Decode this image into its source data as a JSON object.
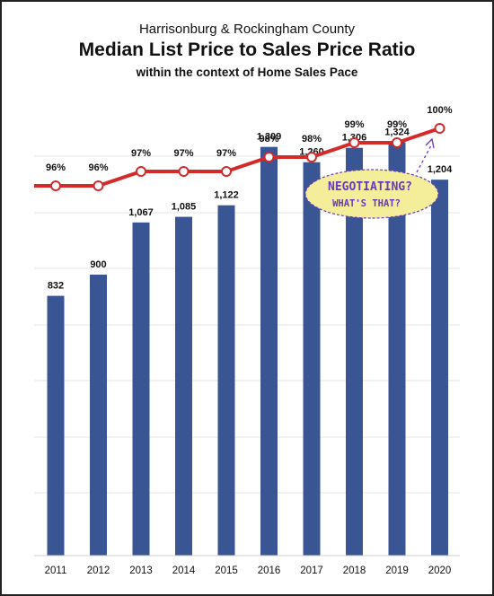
{
  "header": {
    "region": "Harrisonburg & Rockingham County",
    "title": "Median List Price to Sales Price Ratio",
    "subtitle": "within the context of Home Sales Pace"
  },
  "annotation": {
    "line1": "NEGOTIATING?",
    "line2": "WHAT'S THAT?",
    "colors": {
      "fill": "#f4ee9a",
      "border": "#6a38c0",
      "text": "#6a38c0"
    }
  },
  "colors": {
    "line": "#d42a2a",
    "bar": "#3a5593",
    "grid": "#e6e6e6"
  },
  "chart_data": [
    {
      "type": "line",
      "categories": [
        "2011",
        "2012",
        "2013",
        "2014",
        "2015",
        "2016",
        "2017",
        "2018",
        "2019",
        "2020"
      ],
      "series": [
        {
          "values": [
            96,
            96,
            97,
            97,
            97,
            98,
            98,
            99,
            99,
            100
          ]
        }
      ],
      "value_labels": [
        "96%",
        "96%",
        "97%",
        "97%",
        "97%",
        "98%",
        "98%",
        "99%",
        "99%",
        "100%"
      ],
      "unit": "%",
      "grid": true
    },
    {
      "type": "bar",
      "categories": [
        "2011",
        "2012",
        "2013",
        "2014",
        "2015",
        "2016",
        "2017",
        "2018",
        "2019",
        "2020"
      ],
      "values": [
        832,
        900,
        1067,
        1085,
        1122,
        1309,
        1260,
        1306,
        1324,
        1204
      ],
      "value_labels": [
        "832",
        "900",
        "1,067",
        "1,085",
        "1,122",
        "1,309",
        "1,260",
        "1,306",
        "1,324",
        "1,204"
      ],
      "ylim": [
        0,
        1400
      ],
      "grid": true
    }
  ]
}
